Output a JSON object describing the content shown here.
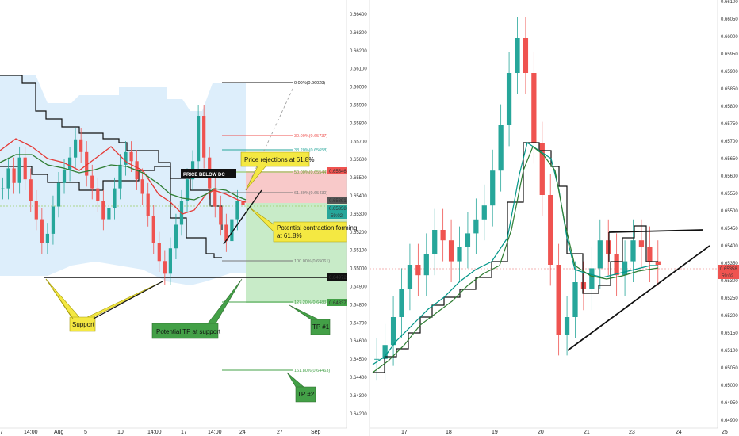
{
  "colors": {
    "bull": "#26a69a",
    "bear": "#ef5350",
    "price_line": "#ef5350",
    "donchian_fill": "#ddeefb",
    "zone_red": "#f8c9c9",
    "zone_green": "#c8ebc8",
    "note_yellow": "#f4e842",
    "note_green": "#43a047"
  },
  "left_chart": {
    "y_ticks": [
      "0.66400",
      "0.66300",
      "0.66200",
      "0.66100",
      "0.66000",
      "0.65900",
      "0.65800",
      "0.65700",
      "0.65600",
      "0.65500",
      "0.65400",
      "0.65300",
      "0.65200",
      "0.65100",
      "0.65000",
      "0.64900",
      "0.64800",
      "0.64700",
      "0.64600",
      "0.64500",
      "0.64400",
      "0.64300",
      "0.64200"
    ],
    "x_ticks": [
      "7",
      "14:00",
      "Aug",
      "5",
      "10",
      "14:00",
      "17",
      "14:00",
      "24",
      "27",
      "Sep"
    ],
    "price_tags": [
      {
        "label": "0.65546",
        "color": "#ef5350"
      },
      {
        "label": "0.65391",
        "color": "#555555"
      },
      {
        "label": "0.65358",
        "color": "#26a69a"
      },
      {
        "label": "59:02",
        "color": "#26a69a"
      },
      {
        "label": "0.64972",
        "color": "#111111"
      },
      {
        "label": "0.64837",
        "color": "#43a047"
      }
    ],
    "fib_levels": [
      {
        "label": "0.00%(0.66028)",
        "color": "#111111"
      },
      {
        "label": "30.00%(0.65737)",
        "color": "#ef5350"
      },
      {
        "label": "38.20%(0.65658)",
        "color": "#26a69a"
      },
      {
        "label": "50.00%(0.65544)",
        "color": "#8bc34a"
      },
      {
        "label": "61.80%(0.65430)",
        "color": "#777777"
      },
      {
        "label": "100.00%(0.65061)",
        "color": "#777777"
      },
      {
        "label": "127.20%(0.64837)",
        "color": "#43a047"
      },
      {
        "label": "161.80%(0.64463)",
        "color": "#43a047"
      }
    ],
    "annotations": {
      "price_below_dc": "PRICE BELOW DC",
      "price_rejections": "Price rejections at 61.8%",
      "potential_contraction": "Potential contraction forming at 61.8%",
      "support": "Support",
      "potential_tp": "Potential TP at support",
      "tp1": "TP #1",
      "tp2": "TP #2"
    }
  },
  "right_chart": {
    "y_ticks": [
      "0.66100",
      "0.66050",
      "0.66000",
      "0.65950",
      "0.65900",
      "0.65850",
      "0.65800",
      "0.65750",
      "0.65700",
      "0.65650",
      "0.65600",
      "0.65550",
      "0.65500",
      "0.65450",
      "0.65400",
      "0.65350",
      "0.65300",
      "0.65250",
      "0.65200",
      "0.65150",
      "0.65100",
      "0.65050",
      "0.65000",
      "0.64950",
      "0.64900"
    ],
    "x_ticks": [
      "17",
      "18",
      "19",
      "20",
      "21",
      "23",
      "24",
      "25"
    ],
    "price_tags": [
      {
        "label": "0.65358",
        "color": "#ef5350"
      },
      {
        "label": "59:02",
        "color": "#ef5350"
      }
    ]
  },
  "chart_data": [
    {
      "type": "candlestick",
      "panel": "left",
      "instrument_price_axis": {
        "min": 0.642,
        "max": 0.664
      },
      "current_price": 0.65358,
      "support_level": 0.64972,
      "fibonacci": {
        "0": 0.66028,
        "0.3": 0.65737,
        "0.382": 0.65658,
        "0.5": 0.65544,
        "0.618": 0.6543,
        "1": 0.65061,
        "1.272": 0.64837,
        "1.618": 0.64463
      },
      "series": [
        {
          "values": [
            0.6545,
            0.6556,
            0.6548,
            0.6562,
            0.655,
            0.6538,
            0.6528,
            0.6515,
            0.652,
            0.6535,
            0.6548,
            0.6555,
            0.6562,
            0.6572,
            0.6565,
            0.6552,
            0.6545,
            0.6538,
            0.6528,
            0.6534,
            0.6545,
            0.6558,
            0.6565,
            0.656,
            0.655,
            0.6542,
            0.653,
            0.6515,
            0.6505,
            0.6498,
            0.6512,
            0.6525,
            0.6538,
            0.655,
            0.656,
            0.6585,
            0.6562,
            0.6545,
            0.6535,
            0.6525,
            0.6516,
            0.6528,
            0.6538,
            0.6536
          ]
        }
      ]
    },
    {
      "type": "candlestick",
      "panel": "right",
      "instrument_price_axis": {
        "min": 0.649,
        "max": 0.661
      },
      "current_price": 0.65358,
      "series": [
        {
          "values": [
            0.6508,
            0.6512,
            0.652,
            0.6528,
            0.6535,
            0.6532,
            0.6538,
            0.6545,
            0.6542,
            0.6536,
            0.654,
            0.6544,
            0.6548,
            0.6552,
            0.6562,
            0.6575,
            0.659,
            0.66,
            0.659,
            0.657,
            0.6555,
            0.6535,
            0.6515,
            0.652,
            0.653,
            0.6528,
            0.6534,
            0.6542,
            0.6538,
            0.6532,
            0.6536,
            0.6542,
            0.654,
            0.6536,
            0.6535
          ]
        }
      ]
    }
  ]
}
